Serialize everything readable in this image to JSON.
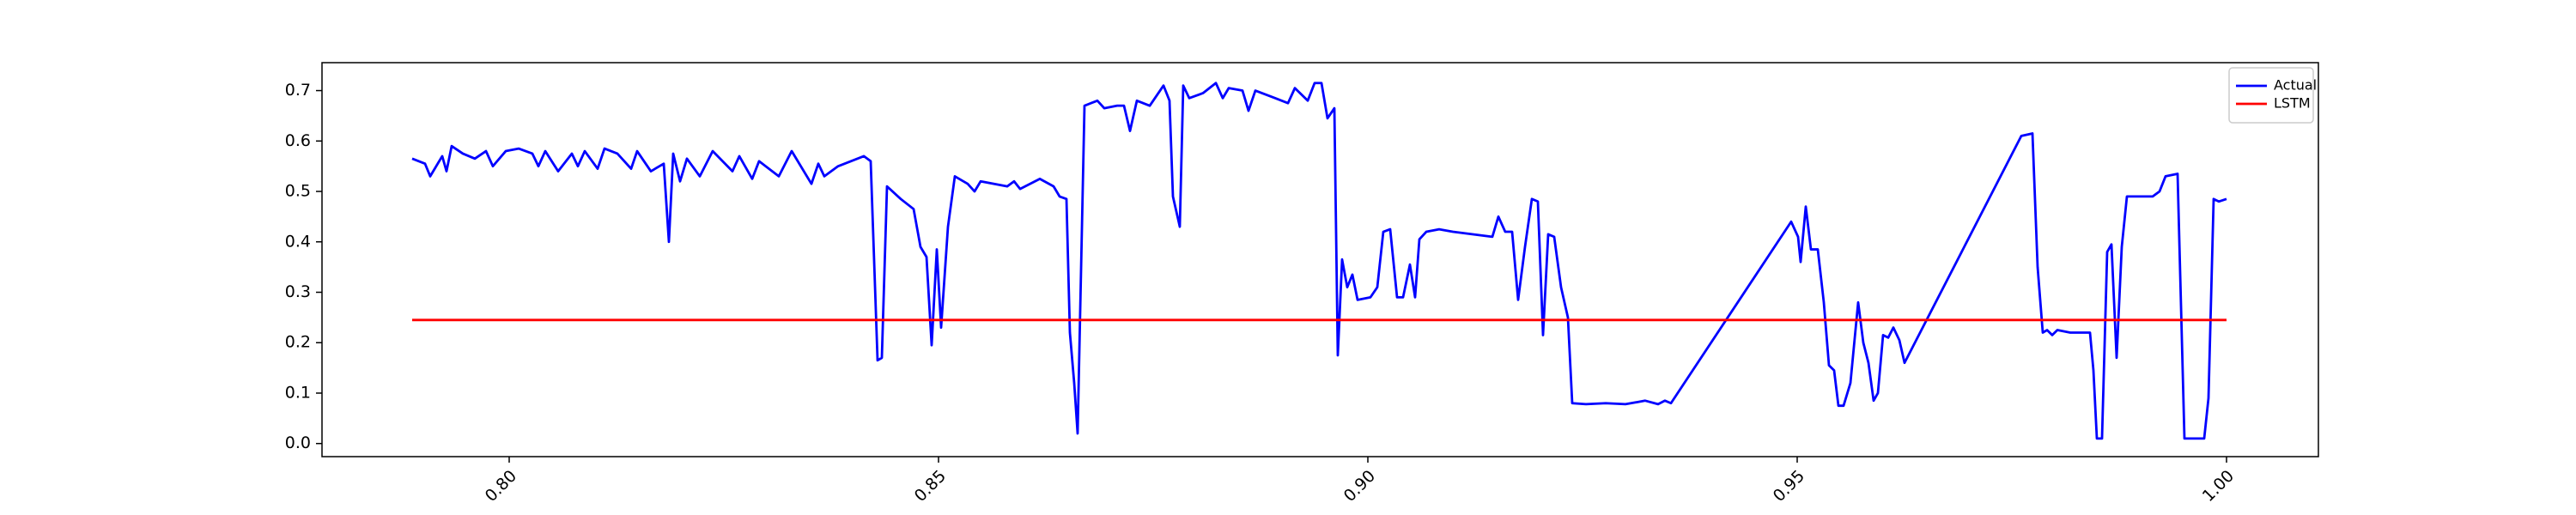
{
  "chart_data": {
    "type": "line",
    "x": [
      0.7887,
      0.7902,
      0.7908,
      0.7922,
      0.7927,
      0.7933,
      0.7946,
      0.796,
      0.7973,
      0.7981,
      0.7996,
      0.8011,
      0.8027,
      0.8034,
      0.8042,
      0.8057,
      0.8073,
      0.808,
      0.8088,
      0.8103,
      0.8111,
      0.8126,
      0.8142,
      0.8149,
      0.8165,
      0.818,
      0.8186,
      0.8191,
      0.8199,
      0.8207,
      0.8222,
      0.8237,
      0.826,
      0.8268,
      0.8283,
      0.8291,
      0.8314,
      0.8329,
      0.8352,
      0.836,
      0.8367,
      0.8383,
      0.8413,
      0.8421,
      0.8429,
      0.8434,
      0.844,
      0.8456,
      0.8471,
      0.8479,
      0.8486,
      0.8492,
      0.8498,
      0.8503,
      0.8511,
      0.8519,
      0.8534,
      0.8542,
      0.8549,
      0.858,
      0.8588,
      0.8595,
      0.8618,
      0.8634,
      0.8641,
      0.8649,
      0.8653,
      0.8658,
      0.8662,
      0.867,
      0.8685,
      0.8693,
      0.8708,
      0.8716,
      0.8723,
      0.8731,
      0.8746,
      0.8762,
      0.8769,
      0.8773,
      0.8781,
      0.8785,
      0.8792,
      0.8808,
      0.8823,
      0.8831,
      0.8838,
      0.8854,
      0.8861,
      0.8869,
      0.8892,
      0.8907,
      0.8915,
      0.893,
      0.8938,
      0.8946,
      0.8953,
      0.8961,
      0.8965,
      0.897,
      0.8976,
      0.8982,
      0.8988,
      0.9003,
      0.9011,
      0.9018,
      0.9026,
      0.9034,
      0.9041,
      0.9049,
      0.9055,
      0.906,
      0.9068,
      0.9083,
      0.9099,
      0.9145,
      0.9152,
      0.916,
      0.9168,
      0.9175,
      0.9183,
      0.9191,
      0.9198,
      0.9204,
      0.921,
      0.9217,
      0.9225,
      0.9233,
      0.9238,
      0.9254,
      0.9277,
      0.93,
      0.9323,
      0.9338,
      0.9346,
      0.9353,
      0.9493,
      0.9501,
      0.9504,
      0.951,
      0.9516,
      0.9524,
      0.9531,
      0.9537,
      0.9543,
      0.9548,
      0.9554,
      0.9562,
      0.9571,
      0.9577,
      0.9583,
      0.9589,
      0.9594,
      0.96,
      0.9606,
      0.9612,
      0.9619,
      0.9625,
      0.9761,
      0.9774,
      0.978,
      0.9786,
      0.9791,
      0.9797,
      0.9803,
      0.9818,
      0.9834,
      0.9841,
      0.9845,
      0.9849,
      0.9855,
      0.9861,
      0.9866,
      0.9872,
      0.9878,
      0.9884,
      0.9899,
      0.9914,
      0.9922,
      0.9929,
      0.9943,
      0.9951,
      0.9974,
      0.9979,
      0.9985,
      0.9991,
      1.0
    ],
    "series": [
      {
        "name": "Actual",
        "color": "#0000ff",
        "values": [
          0.565,
          0.555,
          0.53,
          0.57,
          0.54,
          0.59,
          0.575,
          0.565,
          0.58,
          0.55,
          0.58,
          0.585,
          0.575,
          0.55,
          0.58,
          0.54,
          0.575,
          0.55,
          0.58,
          0.545,
          0.585,
          0.575,
          0.545,
          0.58,
          0.54,
          0.555,
          0.4,
          0.575,
          0.52,
          0.565,
          0.53,
          0.58,
          0.54,
          0.57,
          0.525,
          0.56,
          0.53,
          0.58,
          0.515,
          0.555,
          0.53,
          0.55,
          0.57,
          0.56,
          0.165,
          0.17,
          0.51,
          0.485,
          0.465,
          0.39,
          0.37,
          0.195,
          0.385,
          0.23,
          0.43,
          0.53,
          0.515,
          0.5,
          0.52,
          0.51,
          0.52,
          0.505,
          0.525,
          0.51,
          0.49,
          0.485,
          0.22,
          0.12,
          0.02,
          0.67,
          0.68,
          0.665,
          0.67,
          0.67,
          0.62,
          0.68,
          0.67,
          0.71,
          0.68,
          0.49,
          0.43,
          0.71,
          0.685,
          0.695,
          0.715,
          0.685,
          0.705,
          0.7,
          0.66,
          0.7,
          0.685,
          0.675,
          0.705,
          0.68,
          0.715,
          0.715,
          0.645,
          0.665,
          0.175,
          0.365,
          0.31,
          0.335,
          0.285,
          0.29,
          0.31,
          0.42,
          0.425,
          0.29,
          0.29,
          0.355,
          0.29,
          0.405,
          0.42,
          0.425,
          0.42,
          0.41,
          0.45,
          0.42,
          0.42,
          0.285,
          0.39,
          0.485,
          0.48,
          0.215,
          0.415,
          0.41,
          0.31,
          0.25,
          0.08,
          0.078,
          0.08,
          0.078,
          0.085,
          0.078,
          0.085,
          0.08,
          0.44,
          0.41,
          0.36,
          0.47,
          0.385,
          0.385,
          0.28,
          0.155,
          0.145,
          0.075,
          0.075,
          0.12,
          0.28,
          0.2,
          0.16,
          0.085,
          0.1,
          0.215,
          0.21,
          0.23,
          0.205,
          0.16,
          0.61,
          0.615,
          0.35,
          0.22,
          0.225,
          0.215,
          0.225,
          0.22,
          0.22,
          0.22,
          0.145,
          0.01,
          0.01,
          0.38,
          0.395,
          0.17,
          0.39,
          0.49,
          0.49,
          0.49,
          0.5,
          0.53,
          0.535,
          0.01,
          0.01,
          0.09,
          0.485,
          0.48,
          0.485
        ]
      },
      {
        "name": "LSTM",
        "color": "#ff0000",
        "x": [
          0.7887,
          1.0
        ],
        "values": [
          0.245,
          0.245
        ]
      }
    ],
    "xlim": [
      0.7782,
      1.0107
    ],
    "xticks": [
      {
        "value": 0.8,
        "label": "0.80"
      },
      {
        "value": 0.85,
        "label": "0.85"
      },
      {
        "value": 0.9,
        "label": "0.90"
      },
      {
        "value": 0.95,
        "label": "0.95"
      },
      {
        "value": 1.0,
        "label": "1.00"
      }
    ],
    "ylim": [
      -0.026,
      0.7554
    ],
    "yticks": [
      {
        "value": 0,
        "label": "0.0"
      },
      0.1,
      0.2,
      0.3,
      0.4,
      0.5,
      0.6,
      0.7
    ],
    "legend": "upper right"
  }
}
